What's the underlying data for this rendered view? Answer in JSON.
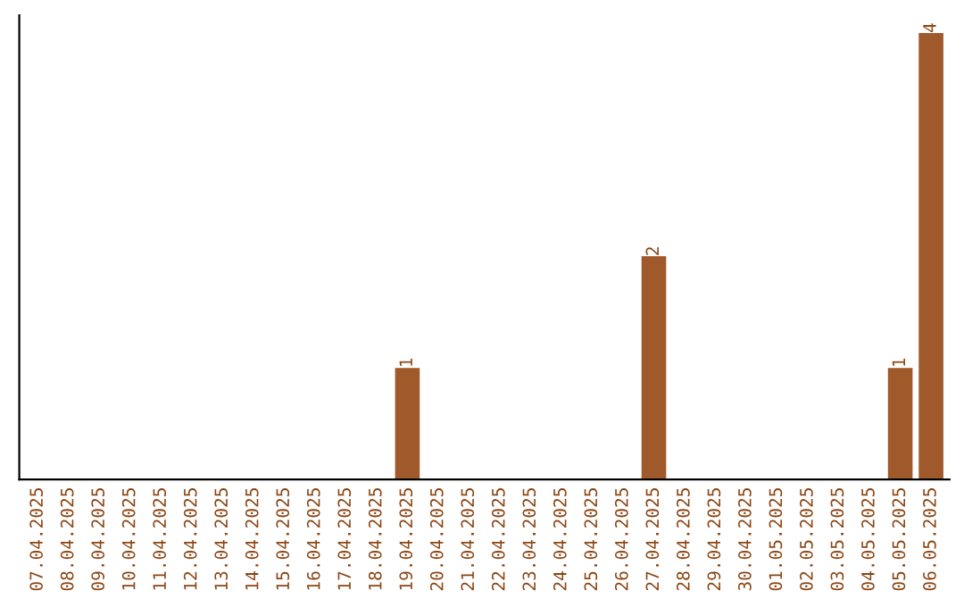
{
  "chart_data": {
    "type": "bar",
    "categories": [
      "07.04.2025",
      "08.04.2025",
      "09.04.2025",
      "10.04.2025",
      "11.04.2025",
      "12.04.2025",
      "13.04.2025",
      "14.04.2025",
      "15.04.2025",
      "16.04.2025",
      "17.04.2025",
      "18.04.2025",
      "19.04.2025",
      "20.04.2025",
      "21.04.2025",
      "22.04.2025",
      "23.04.2025",
      "24.04.2025",
      "25.04.2025",
      "26.04.2025",
      "27.04.2025",
      "28.04.2025",
      "29.04.2025",
      "30.04.2025",
      "01.05.2025",
      "02.05.2025",
      "03.05.2025",
      "04.05.2025",
      "05.05.2025",
      "06.05.2025"
    ],
    "values": [
      null,
      null,
      null,
      null,
      null,
      null,
      null,
      null,
      null,
      null,
      null,
      null,
      1,
      null,
      null,
      null,
      null,
      null,
      null,
      null,
      2,
      null,
      null,
      null,
      null,
      null,
      null,
      null,
      1,
      4
    ],
    "data_labels": true,
    "color": "#a0592a",
    "grid": false,
    "legend": false,
    "tick_labels": "x"
  }
}
